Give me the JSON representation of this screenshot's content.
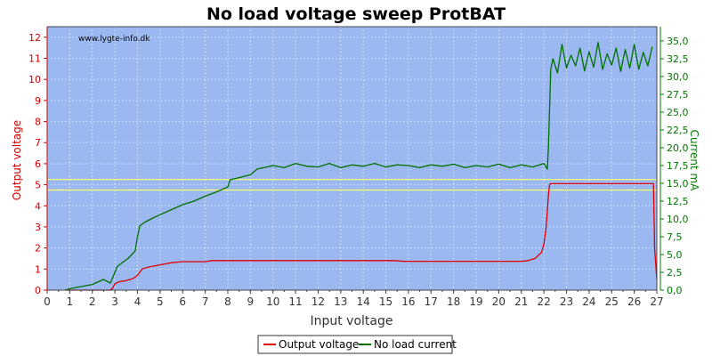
{
  "chart_data": {
    "type": "line",
    "title": "No load voltage sweep ProtBAT",
    "xlabel": "Input voltage",
    "ylabel_left": "Output voltage",
    "ylabel_right": "Current mA",
    "watermark": "www.lygte-info.dk",
    "xlim": [
      0,
      27
    ],
    "ylim_left": [
      0,
      12.5
    ],
    "ylim_right": [
      0,
      37
    ],
    "x_ticks": [
      0,
      1,
      2,
      3,
      4,
      5,
      6,
      7,
      8,
      9,
      10,
      11,
      12,
      13,
      14,
      15,
      16,
      17,
      18,
      19,
      20,
      21,
      22,
      23,
      24,
      25,
      26,
      27
    ],
    "y_left_ticks": [
      0,
      1,
      2,
      3,
      4,
      5,
      6,
      7,
      8,
      9,
      10,
      11,
      12
    ],
    "y_right_ticks": [
      "0,0",
      "2,5",
      "5,0",
      "7,5",
      "10,0",
      "12,5",
      "15,0",
      "17,5",
      "20,0",
      "22,5",
      "25,0",
      "27,5",
      "30,0",
      "32,5",
      "35,0"
    ],
    "grid": true,
    "reference_lines": [
      {
        "axis": "left",
        "value": 4.75,
        "color": "#ffff66"
      },
      {
        "axis": "left",
        "value": 5.25,
        "color": "#ffff66"
      }
    ],
    "legend_position": "bottom-center",
    "colors": {
      "plot_background": "#9bb8f0",
      "grid": "#ffffff",
      "output_voltage": "#e00000",
      "no_load_current": "#007000"
    },
    "series": [
      {
        "name": "Output voltage",
        "axis": "left",
        "x": [
          0.8,
          1.5,
          2.0,
          2.5,
          2.8,
          2.9,
          3.0,
          3.2,
          3.5,
          3.8,
          4.0,
          4.2,
          4.5,
          5.0,
          5.5,
          6.0,
          7.0,
          7.3,
          8.0,
          10.0,
          12.0,
          14.0,
          15.4,
          15.8,
          17.0,
          19.0,
          20.5,
          21.0,
          21.3,
          21.6,
          21.9,
          22.0,
          22.1,
          22.2,
          22.25,
          22.3,
          23.0,
          25.0,
          26.0,
          26.85,
          26.9,
          27.0
        ],
        "values": [
          0.0,
          0.0,
          0.0,
          0.0,
          0.0,
          0.1,
          0.3,
          0.4,
          0.45,
          0.55,
          0.7,
          1.0,
          1.1,
          1.2,
          1.3,
          1.35,
          1.35,
          1.4,
          1.4,
          1.4,
          1.4,
          1.4,
          1.4,
          1.37,
          1.37,
          1.37,
          1.37,
          1.37,
          1.4,
          1.5,
          1.8,
          2.2,
          3.0,
          4.5,
          5.0,
          5.05,
          5.05,
          5.05,
          5.05,
          5.05,
          2.0,
          0.5
        ]
      },
      {
        "name": "No load current",
        "axis": "right",
        "x": [
          0.8,
          1.0,
          1.5,
          2.0,
          2.5,
          2.8,
          3.0,
          3.1,
          3.3,
          3.6,
          3.9,
          4.0,
          4.1,
          4.3,
          4.6,
          5.0,
          5.5,
          6.0,
          6.5,
          7.0,
          7.5,
          8.0,
          8.1,
          8.5,
          9.0,
          9.3,
          9.6,
          10.0,
          10.5,
          11.0,
          11.5,
          12.0,
          12.5,
          13.0,
          13.5,
          14.0,
          14.5,
          15.0,
          15.5,
          16.0,
          16.5,
          17.0,
          17.5,
          18.0,
          18.5,
          19.0,
          19.5,
          20.0,
          20.5,
          21.0,
          21.5,
          22.0,
          22.15,
          22.2,
          22.3,
          22.4,
          22.6,
          22.8,
          23.0,
          23.2,
          23.4,
          23.6,
          23.8,
          24.0,
          24.2,
          24.4,
          24.6,
          24.8,
          25.0,
          25.2,
          25.4,
          25.6,
          25.8,
          26.0,
          26.2,
          26.4,
          26.6,
          26.8
        ],
        "values": [
          0.0,
          0.2,
          0.5,
          0.8,
          1.5,
          1.0,
          2.5,
          3.3,
          3.8,
          4.5,
          5.5,
          7.5,
          9.0,
          9.5,
          10.0,
          10.6,
          11.3,
          12.0,
          12.5,
          13.2,
          13.8,
          14.5,
          15.5,
          15.8,
          16.2,
          17.0,
          17.2,
          17.5,
          17.2,
          17.8,
          17.4,
          17.3,
          17.8,
          17.2,
          17.6,
          17.4,
          17.8,
          17.3,
          17.6,
          17.5,
          17.2,
          17.6,
          17.4,
          17.7,
          17.2,
          17.5,
          17.3,
          17.7,
          17.2,
          17.6,
          17.3,
          17.8,
          17.0,
          20.0,
          31.0,
          32.5,
          30.5,
          34.5,
          31.2,
          33.0,
          31.5,
          34.0,
          30.8,
          33.5,
          31.3,
          34.8,
          31.0,
          33.2,
          31.6,
          34.0,
          30.7,
          33.8,
          31.2,
          34.5,
          31.0,
          33.4,
          31.5,
          34.2
        ]
      }
    ]
  }
}
